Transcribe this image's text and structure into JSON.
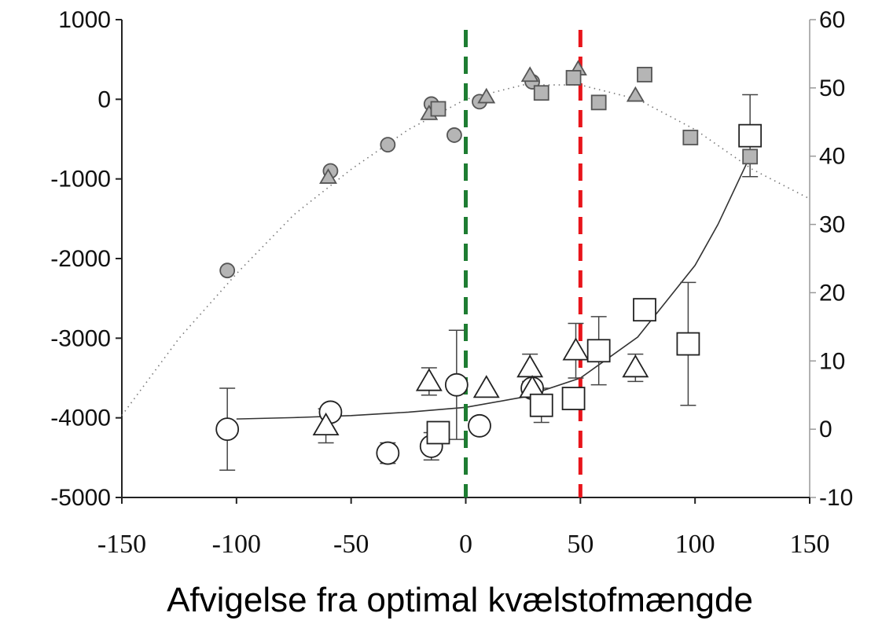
{
  "chart_data": {
    "type": "scatter",
    "title": "",
    "xlabel": "Afvigelse fra optimal kvælstofmængde",
    "x_ticks": [
      "-150",
      "-100",
      "-50",
      "0",
      "50",
      "100",
      "150"
    ],
    "y_left_ticks": [
      "1000",
      "0",
      "-1000",
      "-2000",
      "-3000",
      "-4000",
      "-5000"
    ],
    "y_right_ticks": [
      "60",
      "50",
      "40",
      "30",
      "20",
      "10",
      "0",
      "-10"
    ],
    "xlim": [
      -150,
      150
    ],
    "ylim_left": [
      -5000,
      1000
    ],
    "ylim_right": [
      -10,
      60
    ],
    "grid": false,
    "colors": {
      "optimum_line": "#1e7d32",
      "reference_line": "#e8141a",
      "filled_marker": "#b5b5b5",
      "curve": "#333333"
    },
    "vertical_lines": [
      {
        "x": 0,
        "style": "dashed",
        "color": "#1e7d32"
      },
      {
        "x": 50,
        "style": "dashed",
        "color": "#e8141a"
      }
    ],
    "series": [
      {
        "axis": "left",
        "marker": "circle",
        "fill": "filled",
        "points": [
          [
            -104,
            -2150
          ],
          [
            -59,
            -900
          ],
          [
            -34,
            -570
          ],
          [
            -15,
            -60
          ],
          [
            -5,
            -450
          ],
          [
            6,
            -30
          ],
          [
            29,
            220
          ]
        ]
      },
      {
        "axis": "left",
        "marker": "triangle",
        "fill": "filled",
        "points": [
          [
            -60,
            -980
          ],
          [
            -16,
            -180
          ],
          [
            9,
            30
          ],
          [
            28,
            300
          ],
          [
            49,
            380
          ],
          [
            74,
            50
          ]
        ]
      },
      {
        "axis": "left",
        "marker": "square",
        "fill": "filled",
        "points": [
          [
            -12,
            -120
          ],
          [
            33,
            80
          ],
          [
            47,
            270
          ],
          [
            58,
            -40
          ],
          [
            78,
            310
          ],
          [
            98,
            -480
          ],
          [
            124,
            -720
          ]
        ]
      },
      {
        "axis": "right",
        "marker": "circle",
        "fill": "open",
        "points": [
          [
            -104,
            0
          ],
          [
            -59,
            2.5
          ],
          [
            -34,
            -3.5
          ],
          [
            -15,
            -2.5
          ],
          [
            -4,
            6.5
          ],
          [
            6,
            0.5
          ],
          [
            29,
            6
          ]
        ],
        "error": [
          6,
          0,
          1.5,
          2,
          8,
          0,
          0
        ]
      },
      {
        "axis": "right",
        "marker": "triangle",
        "fill": "open",
        "points": [
          [
            -61,
            0.5
          ],
          [
            -16,
            7
          ],
          [
            9,
            6
          ],
          [
            28,
            9
          ],
          [
            29,
            6
          ],
          [
            48,
            11.5
          ],
          [
            74,
            9
          ]
        ],
        "error": [
          2.5,
          2,
          0,
          2,
          0,
          4,
          2
        ]
      },
      {
        "axis": "right",
        "marker": "square",
        "fill": "open",
        "points": [
          [
            -12,
            -0.5
          ],
          [
            33,
            3.5
          ],
          [
            47,
            4.5
          ],
          [
            58,
            11.5
          ],
          [
            78,
            17.5
          ],
          [
            97,
            12.5
          ],
          [
            124,
            43
          ]
        ],
        "error": [
          0,
          2.5,
          0,
          5,
          1,
          9,
          6
        ]
      },
      {
        "axis": "left",
        "type": "fit-dotted",
        "x": [
          -150,
          -125,
          -100,
          -75,
          -50,
          -25,
          0,
          25,
          50,
          75,
          100,
          125,
          150
        ],
        "y": [
          -3970,
          -3000,
          -2190,
          -1450,
          -880,
          -380,
          0,
          180,
          180,
          0,
          -380,
          -880,
          -1250
        ]
      },
      {
        "axis": "right",
        "type": "fit-solid",
        "x": [
          -100,
          -75,
          -50,
          -25,
          0,
          25,
          50,
          75,
          100,
          110,
          124
        ],
        "y": [
          1.5,
          1.7,
          2.0,
          2.5,
          3.2,
          4.7,
          7.5,
          13.5,
          24,
          30,
          40
        ]
      }
    ]
  }
}
